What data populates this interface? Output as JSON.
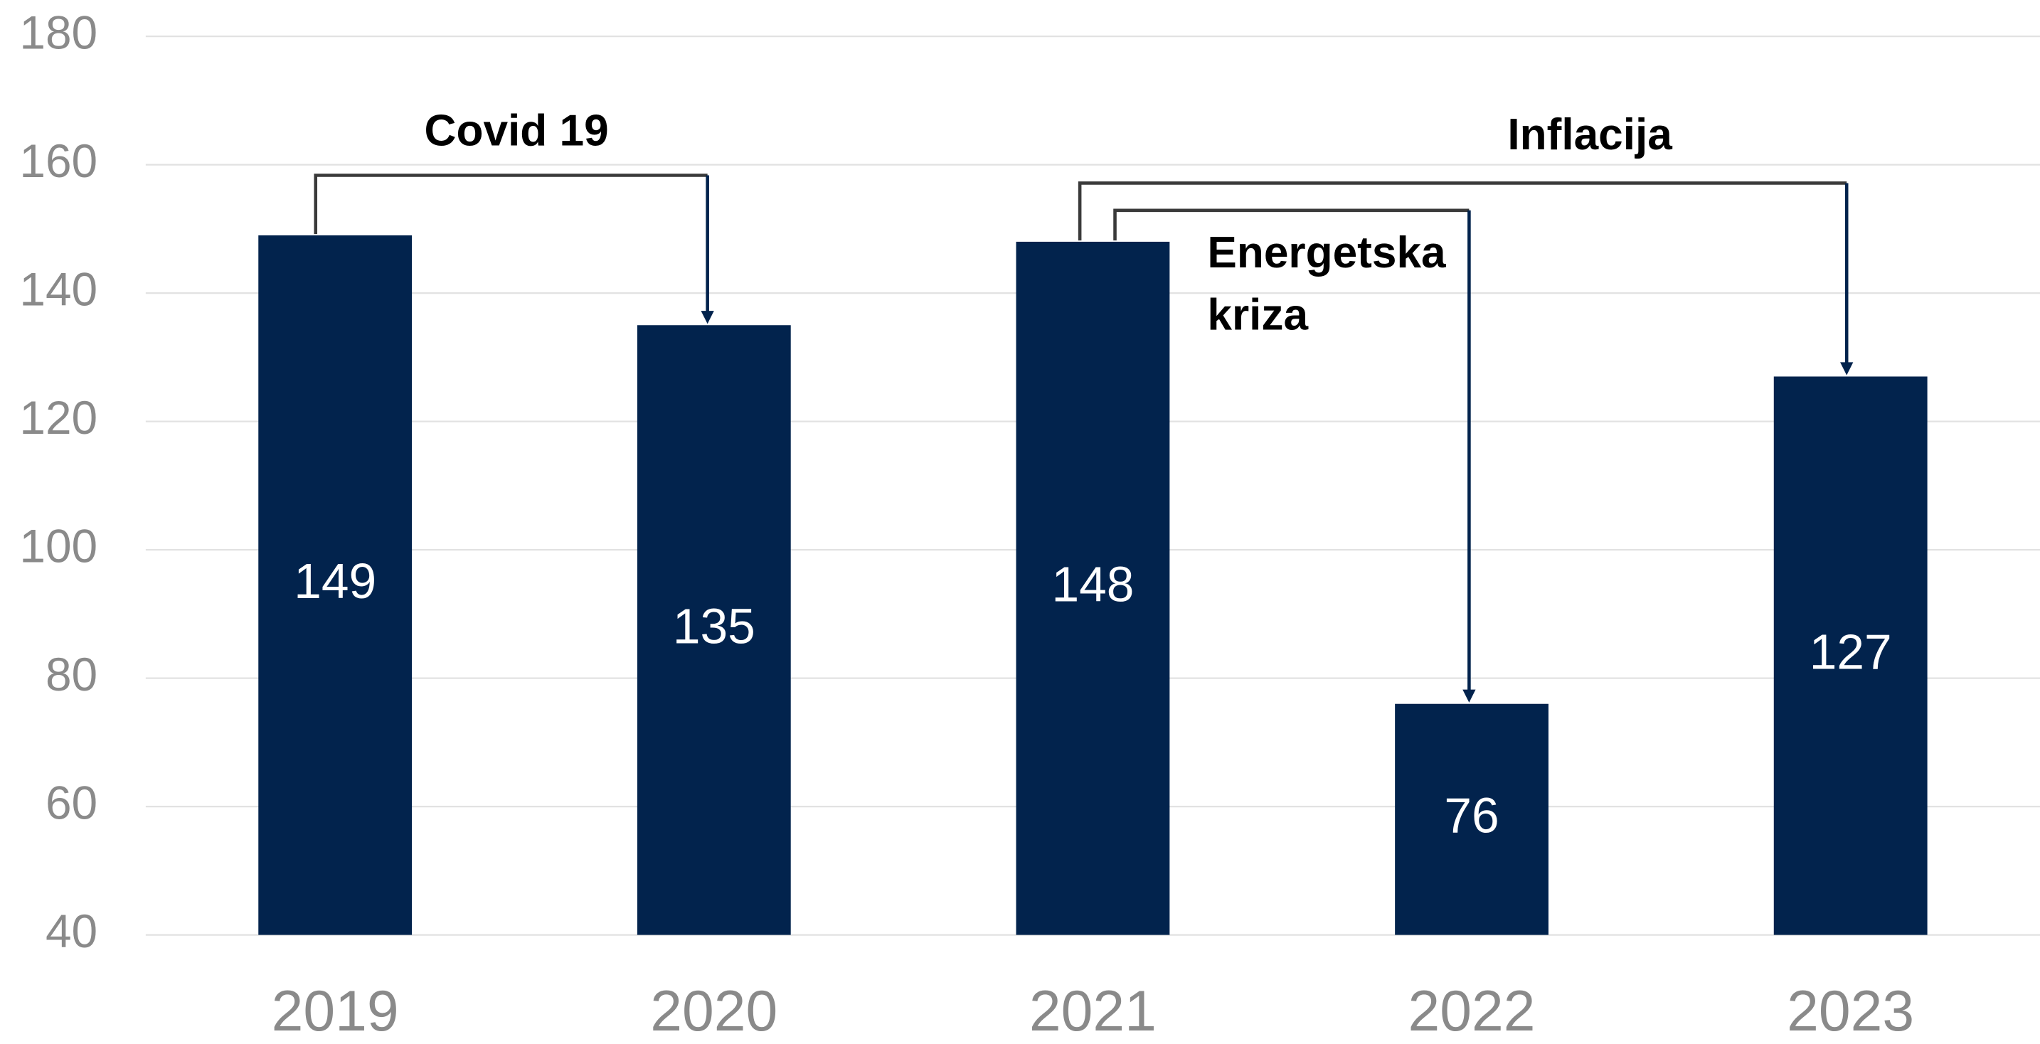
{
  "chart_data": {
    "type": "bar",
    "categories": [
      "2019",
      "2020",
      "2021",
      "2022",
      "2023"
    ],
    "values": [
      149,
      135,
      148,
      76,
      127
    ],
    "color": "#02234d",
    "ylim": [
      40,
      180
    ],
    "yticks": [
      40,
      60,
      80,
      100,
      120,
      140,
      160,
      180
    ],
    "grid": true,
    "annotations": [
      {
        "text": "Covid 19"
      },
      {
        "text": "Inflacija"
      },
      {
        "lines": [
          "Energetska",
          "kriza"
        ]
      }
    ]
  }
}
